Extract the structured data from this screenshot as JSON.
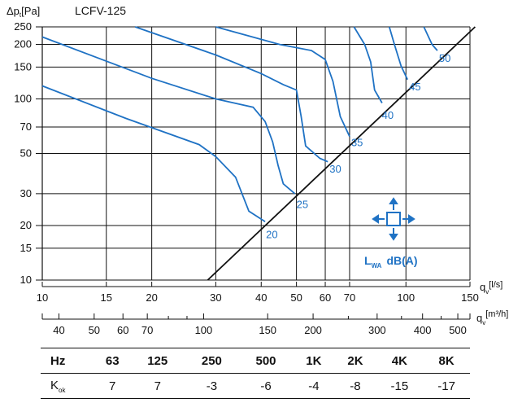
{
  "chart_data": {
    "type": "line",
    "title": "LCFV-125",
    "ylabel_main": "Δp",
    "ylabel_sub": "t",
    "ylabel_unit": "[Pa]",
    "xlabel_ls_main": "q",
    "xlabel_ls_sub": "v",
    "xlabel_ls_unit": "[l/s]",
    "xlabel_m3h_main": "q",
    "xlabel_m3h_sub": "v",
    "xlabel_m3h_unit": "[m³/h]",
    "x_scale": "log",
    "y_scale": "log",
    "xlim": [
      10,
      150
    ],
    "ylim": [
      10,
      250
    ],
    "grid": true,
    "y_ticks": [
      10,
      15,
      20,
      30,
      50,
      70,
      100,
      150,
      200,
      250
    ],
    "x_ticks_ls": [
      10,
      15,
      20,
      30,
      40,
      50,
      60,
      70,
      100,
      150
    ],
    "x_ticks_m3h": [
      40,
      50,
      60,
      70,
      100,
      150,
      200,
      300,
      400,
      500
    ],
    "x_ticks_m3h_minor": [
      80,
      90,
      250,
      350,
      450
    ],
    "system_line": {
      "name": "system",
      "points": [
        [
          28.5,
          10
        ],
        [
          155,
          250
        ]
      ]
    },
    "sound_curves": [
      {
        "name": "20",
        "label_at": [
          40.8,
          19.3
        ],
        "points": [
          [
            10,
            118
          ],
          [
            17,
            78
          ],
          [
            27,
            56
          ],
          [
            30,
            48
          ],
          [
            34,
            37
          ],
          [
            37,
            24
          ],
          [
            41,
            21
          ]
        ]
      },
      {
        "name": "25",
        "label_at": [
          49.5,
          28.3
        ],
        "points": [
          [
            10,
            220
          ],
          [
            20,
            130
          ],
          [
            30,
            100
          ],
          [
            38,
            90
          ],
          [
            41,
            75
          ],
          [
            43,
            58
          ],
          [
            44.5,
            43
          ],
          [
            46,
            34
          ],
          [
            49.5,
            30
          ]
        ]
      },
      {
        "name": "30",
        "label_at": [
          61,
          44.5
        ],
        "points": [
          [
            18,
            250
          ],
          [
            30,
            175
          ],
          [
            40,
            138
          ],
          [
            46,
            120
          ],
          [
            50,
            112
          ],
          [
            51.5,
            80
          ],
          [
            53,
            55
          ],
          [
            58,
            47
          ],
          [
            61,
            45
          ]
        ]
      },
      {
        "name": "35",
        "label_at": [
          70,
          62
        ],
        "points": [
          [
            30,
            250
          ],
          [
            45,
            200
          ],
          [
            55,
            185
          ],
          [
            60,
            165
          ],
          [
            63,
            125
          ],
          [
            66,
            80
          ],
          [
            70,
            62
          ]
        ]
      },
      {
        "name": "40",
        "label_at": [
          85,
          88
        ],
        "points": [
          [
            72,
            250
          ],
          [
            77,
            200
          ],
          [
            80,
            160
          ],
          [
            82,
            112
          ],
          [
            86,
            95
          ]
        ]
      },
      {
        "name": "45",
        "label_at": [
          101,
          126
        ],
        "points": [
          [
            90,
            250
          ],
          [
            93,
            200
          ],
          [
            97,
            152
          ],
          [
            101,
            128
          ]
        ]
      },
      {
        "name": "50",
        "label_at": [
          122,
          181
        ],
        "points": [
          [
            112,
            250
          ],
          [
            118,
            200
          ],
          [
            122,
            185
          ]
        ]
      }
    ],
    "legend_label_main": "L",
    "legend_label_sub": "WA",
    "legend_label_unit": "dB(A)",
    "curve_color": "#1f72c4",
    "system_line_color": "#111111"
  },
  "kok_table": {
    "header": [
      "Hz",
      "63",
      "125",
      "250",
      "500",
      "1K",
      "2K",
      "4K",
      "8K"
    ],
    "row_label_main": "K",
    "row_label_sub": "ok",
    "values": [
      "7",
      "7",
      "-3",
      "-6",
      "-4",
      "-8",
      "-15",
      "-17"
    ]
  }
}
